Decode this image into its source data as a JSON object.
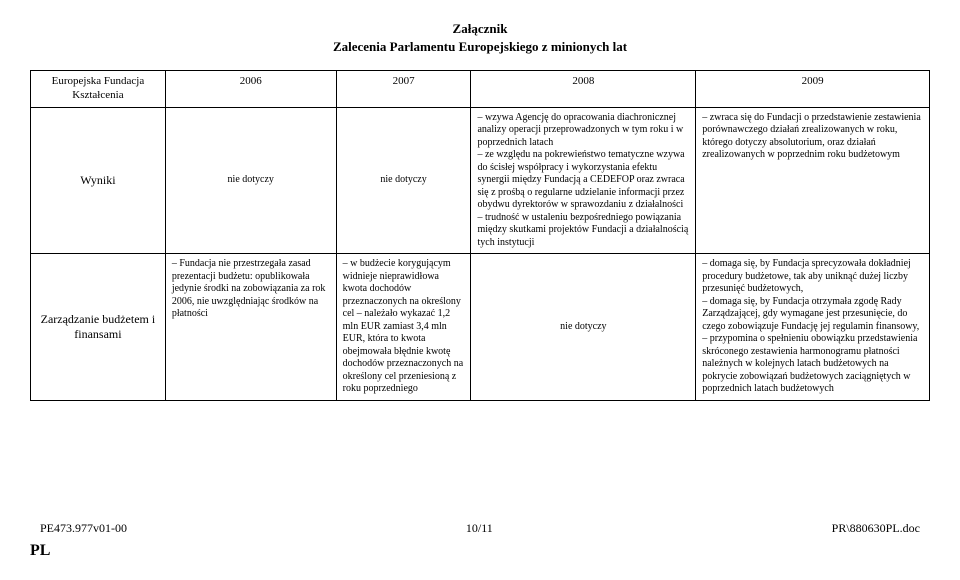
{
  "header": {
    "line1": "Załącznik",
    "line2": "Zalecenia Parlamentu Europejskiego z minionych lat"
  },
  "table": {
    "columns": [
      "Europejska Fundacja Kształcenia",
      "2006",
      "2007",
      "2008",
      "2009"
    ],
    "rows": [
      {
        "label": "Wyniki",
        "c2006": "nie dotyczy",
        "c2007": "nie dotyczy",
        "c2008": "– wzywa Agencję do opracowania diachronicznej analizy operacji przeprowadzonych w tym roku i w poprzednich latach\n– ze względu na pokrewieństwo tematyczne wzywa do ścisłej współpracy i wykorzystania efektu synergii między Fundacją a CEDEFOP oraz zwraca się z prośbą o regularne udzielanie informacji przez obydwu dyrektorów w sprawozdaniu z działalności\n– trudność w ustaleniu bezpośredniego powiązania między skutkami projektów Fundacji a działalnością tych instytucji",
        "c2009": "– zwraca się do Fundacji o przedstawienie zestawienia porównawczego działań zrealizowanych w roku, którego dotyczy absolutorium, oraz działań zrealizowanych w poprzednim roku budżetowym"
      },
      {
        "label": "Zarządzanie budżetem i finansami",
        "c2006": "– Fundacja nie przestrzegała zasad prezentacji budżetu: opublikowała jedynie środki na zobowiązania za rok 2006, nie uwzględniając środków na płatności",
        "c2007": "– w budżecie korygującym widnieje nieprawidłowa kwota dochodów przeznaczonych na określony cel – należało wykazać 1,2 mln EUR zamiast 3,4 mln EUR, która to kwota obejmowała błędnie kwotę dochodów przeznaczonych na określony cel przeniesioną z roku poprzedniego",
        "c2008": "nie dotyczy",
        "c2009": "– domaga się, by Fundacja sprecyzowała dokładniej procedury budżetowe, tak aby uniknąć dużej liczby przesunięć budżetowych,\n– domaga się, by Fundacja otrzymała zgodę Rady Zarządzającej, gdy wymagane jest przesunięcie, do czego zobowiązuje Fundację jej regulamin finansowy,\n– przypomina o spełnieniu obowiązku przedstawienia skróconego zestawienia harmonogramu płatności należnych w kolejnych latach budżetowych na pokrycie zobowiązań budżetowych zaciągniętych w poprzednich latach budżetowych"
      }
    ]
  },
  "footer": {
    "left": "PE473.977v01-00",
    "center": "10/11",
    "right": "PR\\880630PL.doc",
    "lang": "PL"
  }
}
